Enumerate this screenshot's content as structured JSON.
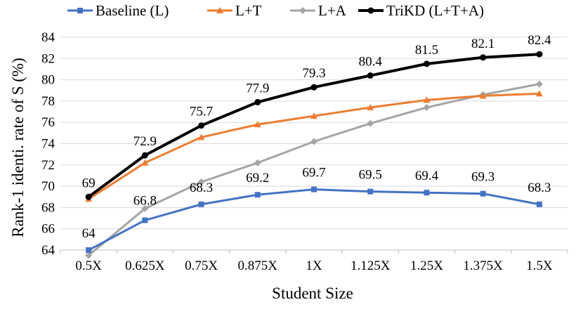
{
  "chart_data": {
    "type": "line",
    "title": "",
    "xlabel": "Student Size",
    "ylabel": "Rank-1 identi. rate of S (%)",
    "categories": [
      "0.5X",
      "0.625X",
      "0.75X",
      "0.875X",
      "1X",
      "1.125X",
      "1.25X",
      "1.375X",
      "1.5X"
    ],
    "ylim": [
      64,
      84
    ],
    "yticks": [
      64,
      66,
      68,
      70,
      72,
      74,
      76,
      78,
      80,
      82,
      84
    ],
    "grid": "horizontal",
    "legend_position": "top",
    "series": [
      {
        "name": "Baseline (L)",
        "color": "#4472c4",
        "marker": "square",
        "values": [
          64,
          66.8,
          68.3,
          69.2,
          69.7,
          69.5,
          69.4,
          69.3,
          68.3
        ],
        "labels": [
          "64",
          "66.8",
          "68.3",
          "69.2",
          "69.7",
          "69.5",
          "69.4",
          "69.3",
          "68.3"
        ]
      },
      {
        "name": "L+T",
        "color": "#ed7d31",
        "marker": "triangle",
        "values": [
          68.8,
          72.2,
          74.6,
          75.8,
          76.6,
          77.4,
          78.1,
          78.5,
          78.7
        ]
      },
      {
        "name": "L+A",
        "color": "#a5a5a5",
        "marker": "diamond",
        "values": [
          63.5,
          67.9,
          70.4,
          72.2,
          74.2,
          75.9,
          77.4,
          78.6,
          79.6
        ]
      },
      {
        "name": "TriKD (L+T+A)",
        "color": "#000000",
        "marker": "circle",
        "values": [
          69,
          72.9,
          75.7,
          77.9,
          79.3,
          80.4,
          81.5,
          82.1,
          82.4
        ],
        "labels": [
          "69",
          "72.9",
          "75.7",
          "77.9",
          "79.3",
          "80.4",
          "81.5",
          "82.1",
          "82.4"
        ]
      }
    ]
  }
}
